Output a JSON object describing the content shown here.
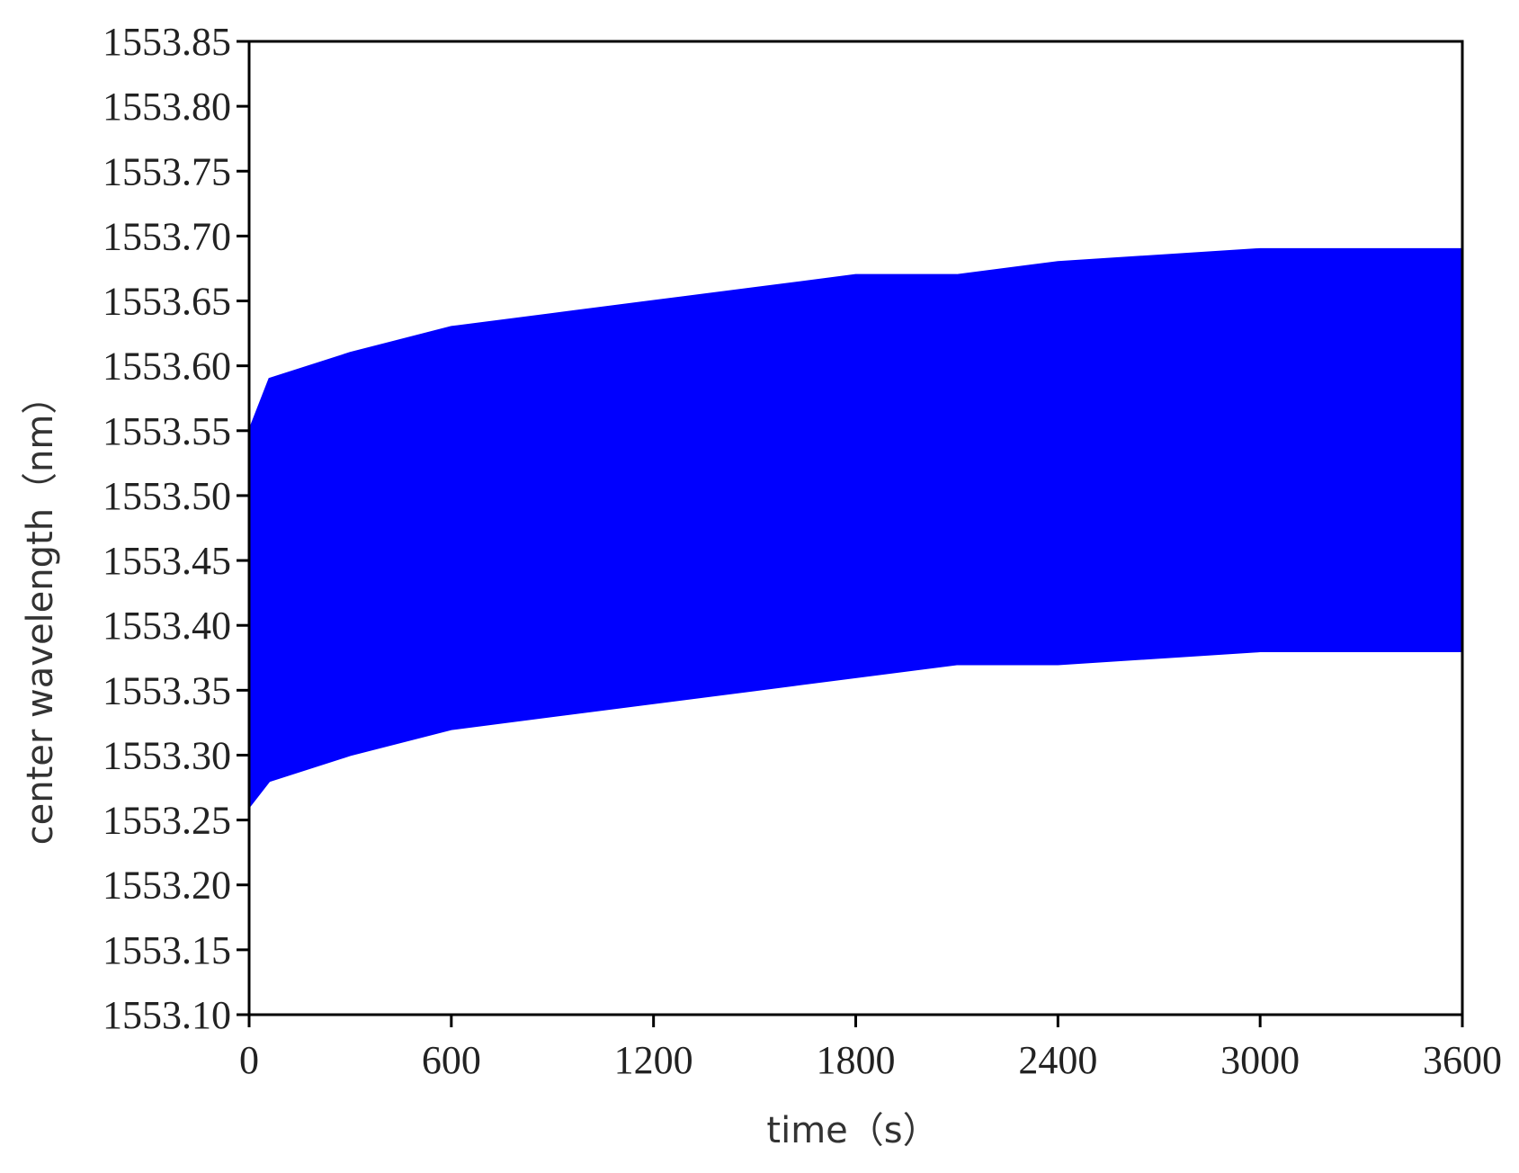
{
  "chart_data": {
    "type": "area",
    "x_label": "time（s）",
    "y_label": "center wavelength（nm）",
    "x": [
      0,
      60,
      300,
      600,
      900,
      1200,
      1500,
      1800,
      2100,
      2400,
      3000,
      3600
    ],
    "series": [
      {
        "color": "#0000ff",
        "values": [
          1553.55,
          1553.59,
          1553.61,
          1553.63,
          1553.64,
          1553.65,
          1553.66,
          1553.67,
          1553.67,
          1553.68,
          1553.69,
          1553.69
        ]
      },
      {
        "color": "#0000ff",
        "values": [
          1553.26,
          1553.28,
          1553.3,
          1553.32,
          1553.33,
          1553.34,
          1553.35,
          1553.36,
          1553.37,
          1553.37,
          1553.38,
          1553.38
        ]
      }
    ],
    "xlim": [
      0,
      3600
    ],
    "xticks": [
      0,
      600,
      1200,
      1800,
      2400,
      3000,
      3600
    ],
    "ylim": [
      1553.1,
      1553.85
    ],
    "yticks": [
      {
        "value": 1553.1,
        "label": "1553.10"
      },
      1553.15,
      {
        "value": 1553.2,
        "label": "1553.20"
      },
      1553.25,
      {
        "value": 1553.3,
        "label": "1553.30"
      },
      1553.35,
      {
        "value": 1553.4,
        "label": "1553.40"
      },
      1553.45,
      {
        "value": 1553.5,
        "label": "1553.50"
      },
      1553.55,
      {
        "value": 1553.6,
        "label": "1553.60"
      },
      1553.65,
      {
        "value": 1553.7,
        "label": "1553.70"
      },
      1553.75,
      {
        "value": 1553.8,
        "label": "1553.80"
      },
      1553.85
    ]
  }
}
